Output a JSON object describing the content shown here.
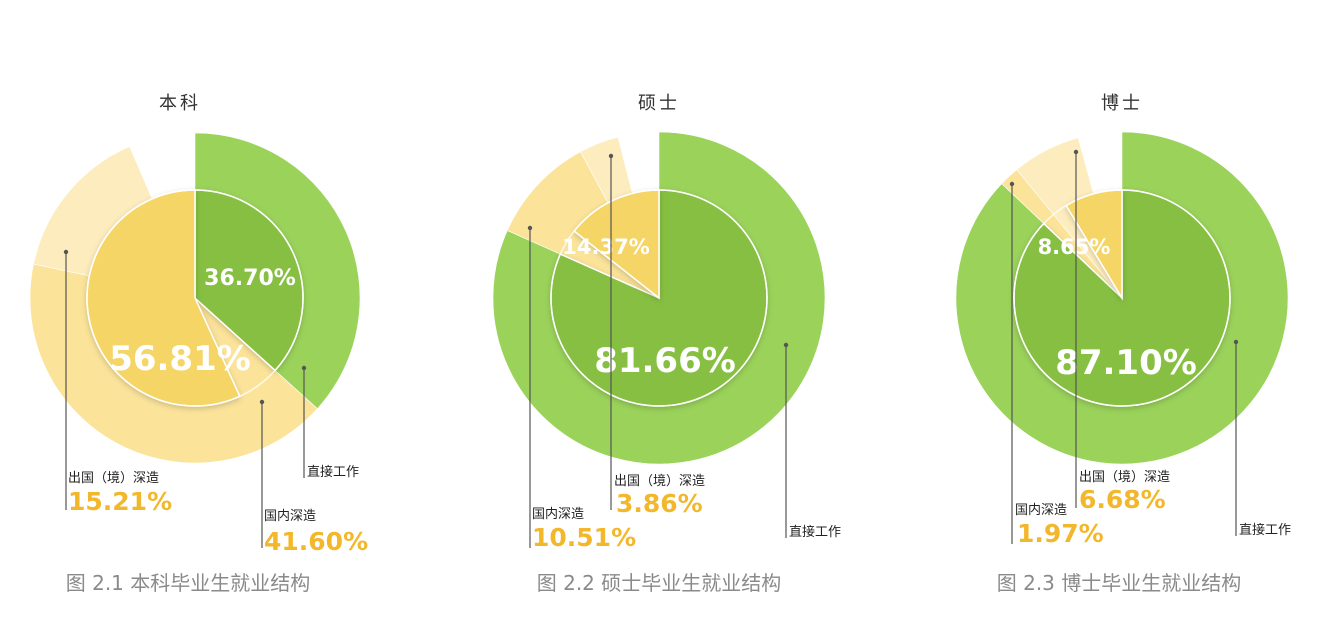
{
  "chart_data": [
    {
      "type": "pie",
      "title": "本科",
      "caption": "图 2.1 本科毕业生就业结构",
      "inner": {
        "slices": [
          {
            "name": "直接工作",
            "value": 36.7,
            "label": "36.70%",
            "color": "#86bf42"
          },
          {
            "name": "深造",
            "value": 56.81,
            "label": "56.81%",
            "color": "#f5d566"
          }
        ]
      },
      "outer": {
        "slices": [
          {
            "name": "直接工作",
            "value": 36.7,
            "label": "",
            "color": "#9ad25a"
          },
          {
            "name": "国内深造",
            "value": 41.6,
            "label": "41.60%",
            "color": "#fbe39a"
          },
          {
            "name": "出国（境）深造",
            "value": 15.21,
            "label": "15.21%",
            "color": "#fdecbe"
          }
        ]
      }
    },
    {
      "type": "pie",
      "title": "硕士",
      "caption": "图 2.2 硕士毕业生就业结构",
      "inner": {
        "slices": [
          {
            "name": "直接工作",
            "value": 81.66,
            "label": "81.66%",
            "color": "#86bf42"
          },
          {
            "name": "深造",
            "value": 14.37,
            "label": "14.37%",
            "color": "#f5d566"
          }
        ]
      },
      "outer": {
        "slices": [
          {
            "name": "直接工作",
            "value": 81.66,
            "label": "",
            "color": "#9ad25a"
          },
          {
            "name": "国内深造",
            "value": 10.51,
            "label": "10.51%",
            "color": "#fbe39a"
          },
          {
            "name": "出国（境）深造",
            "value": 3.86,
            "label": "3.86%",
            "color": "#fdecbe"
          }
        ]
      }
    },
    {
      "type": "pie",
      "title": "博士",
      "caption": "图 2.3 博士毕业生就业结构",
      "inner": {
        "slices": [
          {
            "name": "直接工作",
            "value": 87.1,
            "label": "87.10%",
            "color": "#86bf42"
          },
          {
            "name": "深造",
            "value": 8.65,
            "label": "8.65%",
            "color": "#f5d566"
          }
        ]
      },
      "outer": {
        "slices": [
          {
            "name": "直接工作",
            "value": 87.1,
            "label": "",
            "color": "#9ad25a"
          },
          {
            "name": "国内深造",
            "value": 1.97,
            "label": "1.97%",
            "color": "#fbe39a"
          },
          {
            "name": "出国（境）深造",
            "value": 6.68,
            "label": "6.68%",
            "color": "#fdecbe"
          }
        ]
      }
    }
  ],
  "legend_labels": {
    "work": "直接工作",
    "domestic": "国内深造",
    "abroad": "出国（境）深造"
  },
  "colors": {
    "label_value": "#f3b72b",
    "caption": "#8a8a8a",
    "title": "#333333",
    "leader": "#555555",
    "white_text": "#ffffff"
  }
}
